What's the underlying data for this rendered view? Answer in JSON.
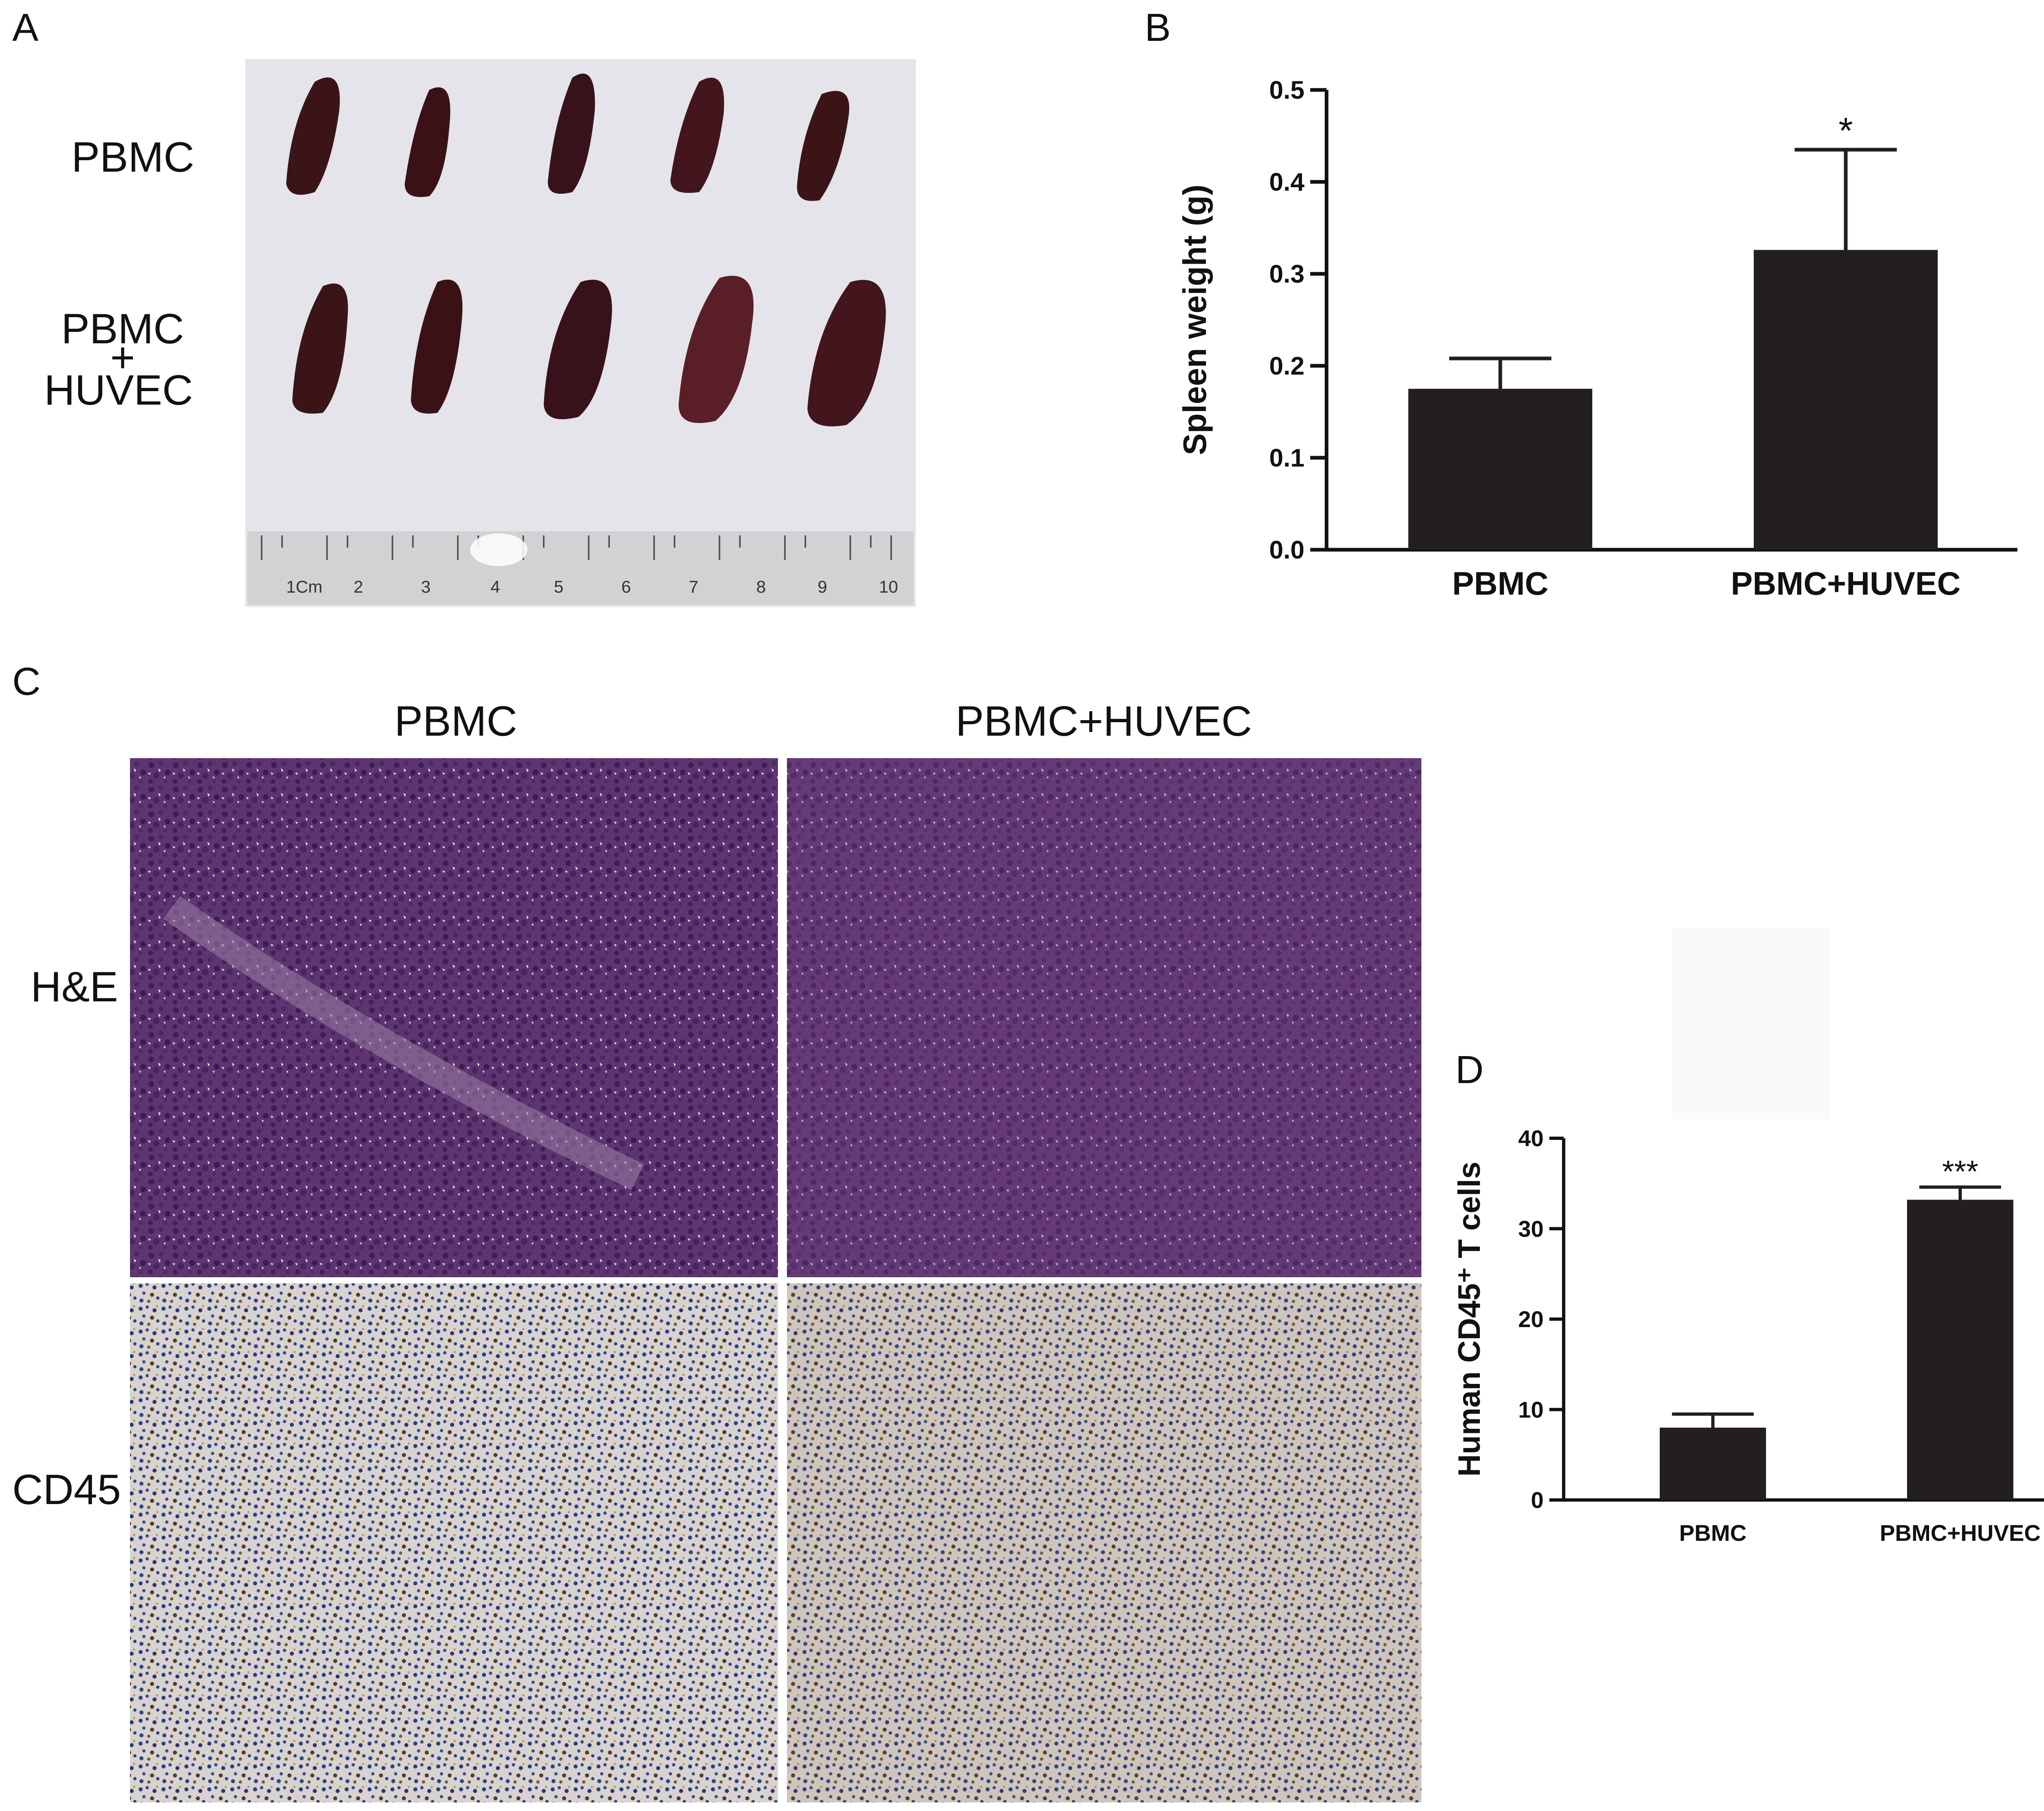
{
  "panels": {
    "a": {
      "letter": "A",
      "row_labels": [
        "PBMC",
        "PBMC",
        "+",
        "HUVEC"
      ],
      "ruler_labels": [
        "1Cm",
        "2",
        "3",
        "4",
        "5",
        "6",
        "7",
        "8",
        "9",
        "10"
      ]
    },
    "b": {
      "letter": "B"
    },
    "c": {
      "letter": "C",
      "columns": [
        "PBMC",
        "PBMC+HUVEC"
      ],
      "rows": [
        "H&E",
        "CD45"
      ]
    },
    "d": {
      "letter": "D"
    }
  },
  "colors": {
    "bar": "#231f20",
    "he_stain": "#6a3f78",
    "cd45_stain": "#a9a6b4",
    "photo_bg": "#e4e4ea",
    "spleen": "#3b1417"
  },
  "chart_data": [
    {
      "panel": "B",
      "type": "bar",
      "categories": [
        "PBMC",
        "PBMC+HUVEC"
      ],
      "values": [
        0.175,
        0.326
      ],
      "error": [
        0.033,
        0.109
      ],
      "significance": [
        "",
        "*"
      ],
      "ylabel": "Spleen weight (g)",
      "ylim": [
        0,
        0.5
      ],
      "yticks": [
        "0.0",
        "0.1",
        "0.2",
        "0.3",
        "0.4",
        "0.5"
      ],
      "grid": false
    },
    {
      "panel": "D",
      "type": "bar",
      "categories": [
        "PBMC",
        "PBMC+HUVEC"
      ],
      "values": [
        8.0,
        33.2
      ],
      "error": [
        1.5,
        1.4
      ],
      "significance": [
        "",
        "***"
      ],
      "ylabel": "Human CD45⁺ T cells",
      "ylim": [
        0,
        40
      ],
      "yticks": [
        "0",
        "10",
        "20",
        "30",
        "40"
      ],
      "grid": false
    }
  ]
}
